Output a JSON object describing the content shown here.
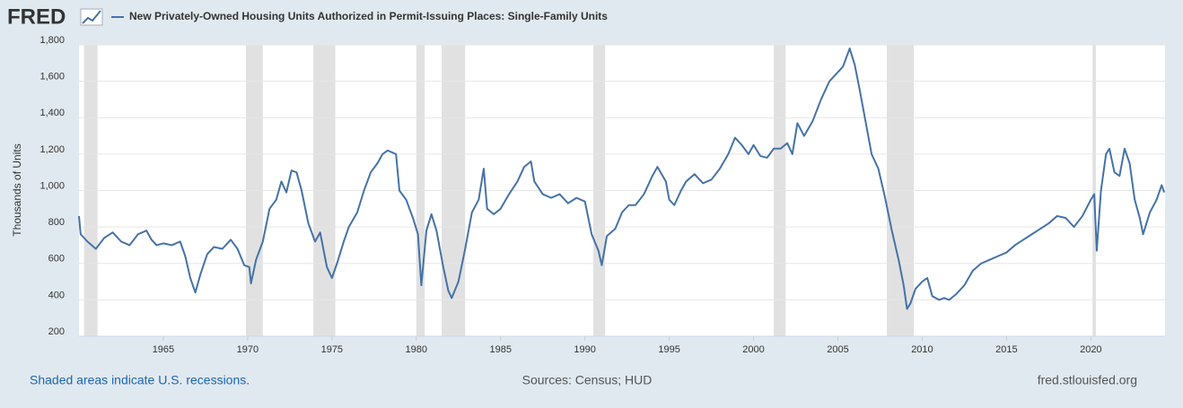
{
  "chart_data": {
    "type": "line",
    "logo": "FRED",
    "y_label": "Thousands of Units",
    "footer_left": "Shaded areas indicate U.S. recessions.",
    "footer_center": "Sources: Census; HUD",
    "footer_right": "fred.stlouisfed.org",
    "xlim": [
      1960,
      2024.4
    ],
    "ylim": [
      200,
      1800
    ],
    "xticks": [
      1965,
      1970,
      1975,
      1980,
      1985,
      1990,
      1995,
      2000,
      2005,
      2010,
      2015,
      2020
    ],
    "yticks": [
      {
        "value": 200,
        "label": "200"
      },
      {
        "value": 400,
        "label": "400"
      },
      {
        "value": 600,
        "label": "600"
      },
      {
        "value": 800,
        "label": "800"
      },
      {
        "value": 1000,
        "label": "1,000"
      },
      {
        "value": 1200,
        "label": "1,200"
      },
      {
        "value": 1400,
        "label": "1,400"
      },
      {
        "value": 1600,
        "label": "1,600"
      },
      {
        "value": 1800,
        "label": "1,800"
      }
    ],
    "grid": true,
    "recessions": [
      [
        1960.3,
        1961.1
      ],
      [
        1969.9,
        1970.9
      ],
      [
        1973.9,
        1975.2
      ],
      [
        1980.0,
        1980.5
      ],
      [
        1981.5,
        1982.9
      ],
      [
        1990.5,
        1991.2
      ],
      [
        2001.2,
        2001.9
      ],
      [
        2007.9,
        2009.5
      ],
      [
        2020.1,
        2020.3
      ]
    ],
    "x": [
      1960.0,
      1960.1,
      1960.5,
      1961.0,
      1961.5,
      1962.0,
      1962.5,
      1963.0,
      1963.5,
      1964.0,
      1964.3,
      1964.6,
      1965.0,
      1965.5,
      1966.0,
      1966.3,
      1966.6,
      1966.9,
      1967.2,
      1967.6,
      1968.0,
      1968.5,
      1969.0,
      1969.4,
      1969.8,
      1970.1,
      1970.2,
      1970.5,
      1970.9,
      1971.3,
      1971.7,
      1972.0,
      1972.3,
      1972.6,
      1972.9,
      1973.2,
      1973.6,
      1974.0,
      1974.3,
      1974.7,
      1975.0,
      1975.3,
      1975.7,
      1976.0,
      1976.5,
      1976.9,
      1977.3,
      1977.7,
      1978.0,
      1978.3,
      1978.8,
      1979.0,
      1979.4,
      1979.8,
      1980.1,
      1980.3,
      1980.6,
      1980.9,
      1981.2,
      1981.6,
      1981.9,
      1982.1,
      1982.5,
      1982.9,
      1983.3,
      1983.7,
      1984.0,
      1984.2,
      1984.6,
      1985.0,
      1985.5,
      1986.0,
      1986.4,
      1986.8,
      1987.0,
      1987.5,
      1988.0,
      1988.5,
      1989.0,
      1989.5,
      1990.0,
      1990.4,
      1990.8,
      1991.0,
      1991.3,
      1991.8,
      1992.2,
      1992.6,
      1993.0,
      1993.5,
      1994.0,
      1994.3,
      1994.8,
      1995.0,
      1995.3,
      1995.7,
      1996.0,
      1996.5,
      1997.0,
      1997.5,
      1998.0,
      1998.5,
      1998.9,
      1999.3,
      1999.7,
      2000.0,
      2000.4,
      2000.8,
      2001.2,
      2001.6,
      2002.0,
      2002.3,
      2002.6,
      2003.0,
      2003.5,
      2004.0,
      2004.5,
      2005.0,
      2005.3,
      2005.7,
      2006.0,
      2006.3,
      2006.7,
      2007.0,
      2007.4,
      2007.8,
      2008.2,
      2008.6,
      2008.9,
      2009.1,
      2009.3,
      2009.6,
      2010.0,
      2010.3,
      2010.6,
      2011.0,
      2011.3,
      2011.6,
      2012.0,
      2012.5,
      2013.0,
      2013.5,
      2014.0,
      2014.5,
      2015.0,
      2015.5,
      2016.0,
      2016.5,
      2017.0,
      2017.5,
      2018.0,
      2018.5,
      2019.0,
      2019.5,
      2020.0,
      2020.2,
      2020.35,
      2020.6,
      2020.9,
      2021.1,
      2021.4,
      2021.7,
      2022.0,
      2022.3,
      2022.6,
      2022.9,
      2023.1,
      2023.5,
      2023.9,
      2024.2,
      2024.35
    ],
    "series": [
      {
        "name": "New Privately-Owned Housing Units Authorized in Permit-Issuing Places: Single-Family Units",
        "color": "#4572a7",
        "values": [
          860,
          760,
          720,
          680,
          740,
          770,
          720,
          700,
          760,
          780,
          730,
          700,
          710,
          700,
          720,
          640,
          520,
          440,
          540,
          650,
          690,
          680,
          730,
          680,
          590,
          580,
          490,
          620,
          720,
          900,
          950,
          1050,
          990,
          1110,
          1100,
          1000,
          820,
          720,
          770,
          580,
          520,
          600,
          720,
          800,
          880,
          1000,
          1100,
          1150,
          1200,
          1220,
          1200,
          1000,
          950,
          850,
          760,
          480,
          780,
          870,
          780,
          580,
          450,
          410,
          500,
          680,
          880,
          950,
          1120,
          900,
          870,
          900,
          980,
          1050,
          1130,
          1160,
          1050,
          980,
          960,
          980,
          930,
          960,
          940,
          760,
          670,
          590,
          750,
          790,
          880,
          920,
          920,
          980,
          1080,
          1130,
          1050,
          950,
          920,
          1000,
          1050,
          1090,
          1040,
          1060,
          1120,
          1200,
          1290,
          1250,
          1200,
          1250,
          1190,
          1180,
          1230,
          1230,
          1260,
          1200,
          1370,
          1300,
          1380,
          1500,
          1600,
          1650,
          1680,
          1780,
          1690,
          1550,
          1350,
          1200,
          1120,
          960,
          780,
          620,
          480,
          350,
          380,
          460,
          500,
          520,
          420,
          400,
          410,
          400,
          430,
          480,
          560,
          600,
          620,
          640,
          660,
          700,
          730,
          760,
          790,
          820,
          860,
          850,
          800,
          860,
          950,
          980,
          670,
          1000,
          1200,
          1230,
          1100,
          1080,
          1230,
          1150,
          950,
          850,
          760,
          880,
          950,
          1030,
          990
        ]
      }
    ]
  }
}
